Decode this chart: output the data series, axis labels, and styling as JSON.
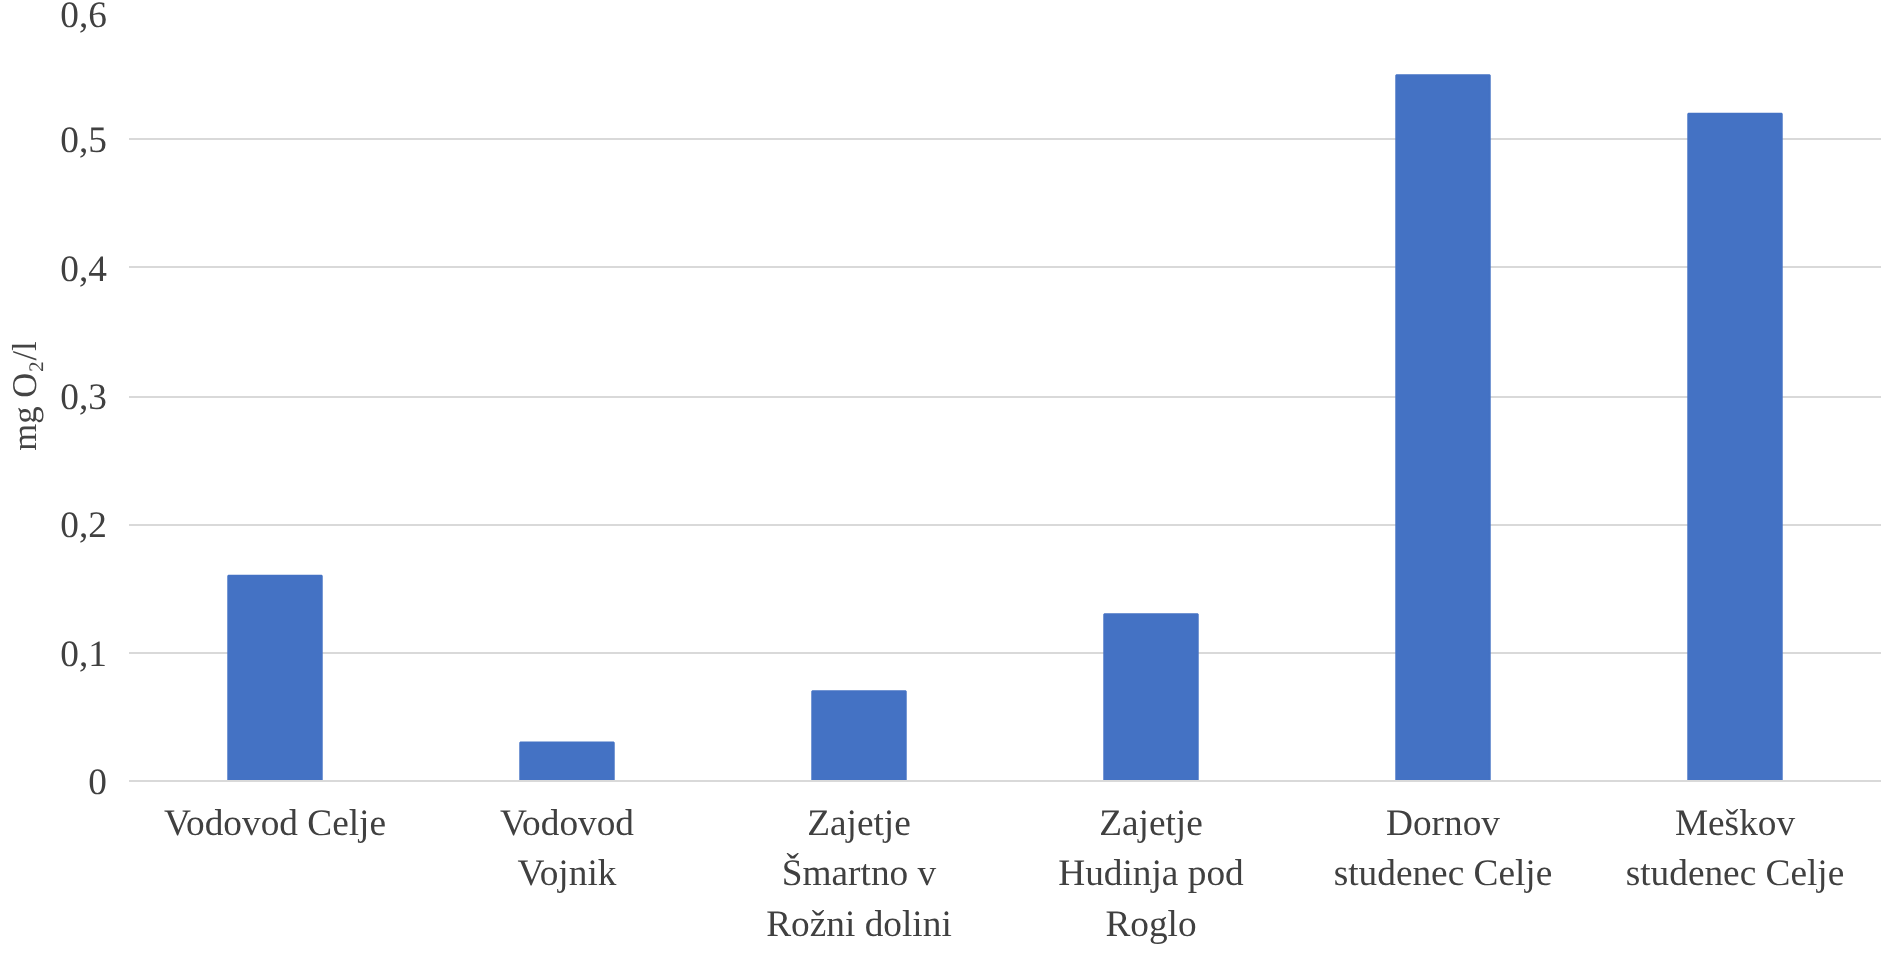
{
  "chart_data": {
    "type": "bar",
    "ylabel": "mg O₂/l",
    "categories": [
      "Vodovod Celje",
      "Vodovod\nVojnik",
      "Zajetje\nŠmartno v\nRožni dolini",
      "Zajetje\nHudinja pod\nRoglo",
      "Dornov\nstudenec Celje",
      "Meškov\nstudenec Celje"
    ],
    "values": [
      0.16,
      0.03,
      0.07,
      0.13,
      0.55,
      0.52
    ],
    "color": "#4472c4",
    "ylim": [
      0,
      0.6
    ],
    "yticks": [
      0,
      {
        "value": 0.1,
        "label": "0,1"
      },
      {
        "value": 0.2,
        "label": "0,2"
      },
      {
        "value": 0.3,
        "label": "0,3"
      },
      {
        "value": 0.4,
        "label": "0,4"
      },
      {
        "value": 0.5,
        "label": "0,5"
      },
      {
        "value": 0.6,
        "label": "0,6"
      }
    ],
    "grid": "y"
  }
}
